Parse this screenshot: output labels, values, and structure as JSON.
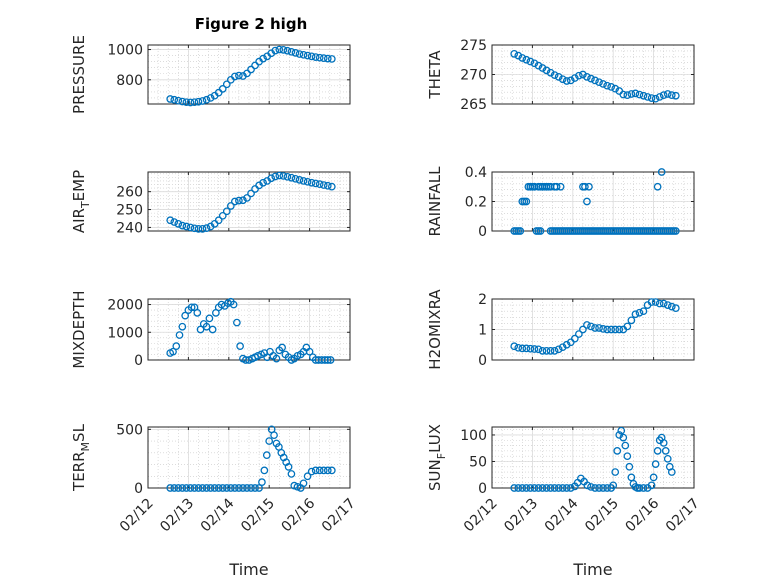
{
  "figure_title": "Figure 2 high",
  "colors": {
    "marker": "#0072BD",
    "axis": "#262626",
    "grid": "#c8c8c8",
    "background": "#ffffff"
  },
  "chart_data": [
    {
      "type": "scatter",
      "title": "Figure 2 high",
      "ylabel": "PRESSURE",
      "xlabel": "",
      "xlim": [
        "02/12",
        "02/17"
      ],
      "ylim": [
        640,
        1030
      ],
      "yticks": [
        800,
        1000
      ],
      "xticks": [
        "02/12",
        "02/13",
        "02/14",
        "02/15",
        "02/16",
        "02/17"
      ],
      "xticks_shown": false,
      "grid": true,
      "x_days": [
        0.55,
        0.65,
        0.75,
        0.85,
        0.95,
        1.05,
        1.15,
        1.25,
        1.35,
        1.45,
        1.55,
        1.65,
        1.75,
        1.85,
        1.95,
        2.05,
        2.15,
        2.25,
        2.35,
        2.45,
        2.55,
        2.65,
        2.75,
        2.85,
        2.95,
        3.05,
        3.15,
        3.25,
        3.35,
        3.45,
        3.55,
        3.65,
        3.75,
        3.85,
        3.95,
        4.05,
        4.15,
        4.25,
        4.35,
        4.45,
        4.55
      ],
      "y": [
        673,
        668,
        662,
        656,
        652,
        650,
        652,
        655,
        660,
        668,
        680,
        695,
        715,
        740,
        770,
        800,
        822,
        828,
        825,
        842,
        868,
        895,
        920,
        940,
        955,
        975,
        993,
        1000,
        998,
        992,
        985,
        978,
        970,
        965,
        960,
        955,
        950,
        946,
        943,
        940,
        938
      ]
    },
    {
      "type": "scatter",
      "ylabel": "THETA",
      "xlabel": "",
      "xlim": [
        "02/12",
        "02/17"
      ],
      "ylim": [
        265,
        275
      ],
      "yticks": [
        265,
        270,
        275
      ],
      "xticks": [
        "02/12",
        "02/13",
        "02/14",
        "02/15",
        "02/16",
        "02/17"
      ],
      "xticks_shown": false,
      "grid": true,
      "x_days": [
        0.55,
        0.65,
        0.75,
        0.85,
        0.95,
        1.05,
        1.15,
        1.25,
        1.35,
        1.45,
        1.55,
        1.65,
        1.75,
        1.85,
        1.95,
        2.05,
        2.15,
        2.25,
        2.35,
        2.45,
        2.55,
        2.65,
        2.75,
        2.85,
        2.95,
        3.05,
        3.15,
        3.25,
        3.35,
        3.45,
        3.55,
        3.65,
        3.75,
        3.85,
        3.95,
        4.05,
        4.15,
        4.25,
        4.35,
        4.45,
        4.55
      ],
      "y": [
        273.5,
        273.2,
        272.8,
        272.5,
        272.2,
        271.9,
        271.5,
        271.1,
        270.7,
        270.3,
        269.9,
        269.6,
        269.2,
        268.9,
        269.0,
        269.4,
        269.8,
        270.0,
        269.6,
        269.3,
        269.0,
        268.7,
        268.4,
        268.1,
        267.9,
        267.6,
        267.2,
        266.6,
        266.5,
        266.7,
        266.8,
        266.6,
        266.4,
        266.2,
        266.0,
        265.9,
        266.2,
        266.5,
        266.7,
        266.5,
        266.4
      ]
    },
    {
      "type": "scatter",
      "ylabel": "AIR_TEMP",
      "ylabel_display": {
        "main": "AIR",
        "sub": "T",
        "rest": "EMP"
      },
      "xlabel": "",
      "xlim": [
        "02/12",
        "02/17"
      ],
      "ylim": [
        238,
        271
      ],
      "yticks": [
        240,
        250,
        260
      ],
      "xticks": [
        "02/12",
        "02/13",
        "02/14",
        "02/15",
        "02/16",
        "02/17"
      ],
      "xticks_shown": false,
      "grid": true,
      "x_days": [
        0.55,
        0.65,
        0.75,
        0.85,
        0.95,
        1.05,
        1.15,
        1.25,
        1.35,
        1.45,
        1.55,
        1.65,
        1.75,
        1.85,
        1.95,
        2.05,
        2.15,
        2.25,
        2.35,
        2.45,
        2.55,
        2.65,
        2.75,
        2.85,
        2.95,
        3.05,
        3.15,
        3.25,
        3.35,
        3.45,
        3.55,
        3.65,
        3.75,
        3.85,
        3.95,
        4.05,
        4.15,
        4.25,
        4.35,
        4.45,
        4.55
      ],
      "y": [
        244,
        243,
        242,
        241,
        240.5,
        240,
        239.5,
        239.2,
        239.2,
        239.6,
        240.5,
        242,
        244,
        246.5,
        249,
        252,
        254.5,
        255,
        255.2,
        256.5,
        259,
        261.5,
        263.5,
        265,
        266,
        267.5,
        268.5,
        269,
        268.8,
        268.3,
        267.8,
        267.2,
        266.6,
        266,
        265.5,
        265,
        264.6,
        264.2,
        263.7,
        263.3,
        262.8
      ]
    },
    {
      "type": "scatter",
      "ylabel": "RAINFALL",
      "xlabel": "",
      "xlim": [
        "02/12",
        "02/17"
      ],
      "ylim": [
        0,
        0.4
      ],
      "yticks": [
        0,
        0.2,
        0.4
      ],
      "xticks": [
        "02/12",
        "02/13",
        "02/14",
        "02/15",
        "02/16",
        "02/17"
      ],
      "xticks_shown": false,
      "grid": true,
      "x_days": [
        0.55,
        0.6,
        0.65,
        0.7,
        0.75,
        0.8,
        0.85,
        0.9,
        0.95,
        1.0,
        1.05,
        1.1,
        1.15,
        1.2,
        1.25,
        1.3,
        1.35,
        1.4,
        1.45,
        1.5,
        1.55,
        1.6,
        1.65,
        1.7,
        1.75,
        1.8,
        1.85,
        1.9,
        1.95,
        2.0,
        2.05,
        2.1,
        2.15,
        2.2,
        2.25,
        2.3,
        2.35,
        2.4,
        2.45,
        2.5,
        2.55,
        2.6,
        2.65,
        2.7,
        2.75,
        2.8,
        2.85,
        2.9,
        2.95,
        3.0,
        3.05,
        3.1,
        3.15,
        3.2,
        3.25,
        3.3,
        3.35,
        3.4,
        3.45,
        3.5,
        3.55,
        3.6,
        3.65,
        3.7,
        3.75,
        3.8,
        3.85,
        3.9,
        3.95,
        4.0,
        4.05,
        4.1,
        4.15,
        4.2,
        4.25,
        4.3,
        4.35,
        4.4,
        4.45,
        4.5,
        4.55,
        0.95,
        1.0,
        1.05,
        1.15,
        1.2,
        1.25,
        1.35,
        1.45,
        1.55,
        1.6,
        1.7,
        2.25,
        2.3,
        2.4,
        2.35,
        4.1,
        4.2
      ],
      "y": [
        0,
        0,
        0,
        0,
        0.2,
        0.2,
        0.2,
        0.3,
        0.3,
        0.3,
        0.3,
        0,
        0,
        0,
        0.3,
        0.3,
        0.3,
        0.3,
        0,
        0,
        0,
        0,
        0,
        0,
        0,
        0,
        0,
        0,
        0,
        0,
        0,
        0,
        0,
        0,
        0,
        0,
        0,
        0,
        0,
        0,
        0,
        0,
        0,
        0,
        0,
        0,
        0,
        0,
        0,
        0,
        0,
        0,
        0,
        0,
        0,
        0,
        0,
        0,
        0,
        0,
        0,
        0,
        0,
        0,
        0,
        0,
        0,
        0,
        0,
        0,
        0,
        0,
        0,
        0,
        0,
        0,
        0,
        0,
        0,
        0,
        0,
        0.3,
        0.3,
        0.3,
        0.3,
        0.3,
        0.3,
        0.3,
        0.3,
        0.3,
        0.3,
        0.3,
        0.3,
        0.3,
        0.3,
        0.2,
        0.3,
        0.4
      ]
    },
    {
      "type": "scatter",
      "ylabel": "MIXDEPTH",
      "xlabel": "",
      "xlim": [
        "02/12",
        "02/17"
      ],
      "ylim": [
        0,
        2200
      ],
      "yticks": [
        0,
        1000,
        2000
      ],
      "xticks": [
        "02/12",
        "02/13",
        "02/14",
        "02/15",
        "02/16",
        "02/17"
      ],
      "xticks_shown": false,
      "grid": true,
      "x_days": [
        0.55,
        0.62,
        0.7,
        0.78,
        0.85,
        0.92,
        1.0,
        1.08,
        1.15,
        1.22,
        1.3,
        1.38,
        1.45,
        1.52,
        1.6,
        1.68,
        1.75,
        1.82,
        1.9,
        1.98,
        2.05,
        2.12,
        2.2,
        2.28,
        2.35,
        2.42,
        2.5,
        2.58,
        2.65,
        2.72,
        2.8,
        2.88,
        2.95,
        3.02,
        3.1,
        3.18,
        3.25,
        3.32,
        3.4,
        3.48,
        3.55,
        3.62,
        3.7,
        3.78,
        3.85,
        3.92,
        4.0,
        4.08,
        4.15,
        4.22,
        4.3,
        4.38,
        4.45,
        4.52
      ],
      "y": [
        250,
        300,
        500,
        900,
        1200,
        1600,
        1800,
        1900,
        1900,
        1700,
        1100,
        1300,
        1200,
        1500,
        1100,
        1700,
        1900,
        2000,
        1950,
        2050,
        2100,
        2000,
        1350,
        500,
        50,
        0,
        0,
        50,
        100,
        150,
        200,
        250,
        100,
        300,
        150,
        50,
        350,
        450,
        200,
        100,
        0,
        50,
        150,
        200,
        300,
        450,
        300,
        100,
        0,
        0,
        0,
        0,
        0,
        0
      ]
    },
    {
      "type": "scatter",
      "ylabel": "H2OMIXRA",
      "xlabel": "",
      "xlim": [
        "02/12",
        "02/17"
      ],
      "ylim": [
        0,
        2
      ],
      "yticks": [
        0,
        1,
        2
      ],
      "xticks": [
        "02/12",
        "02/13",
        "02/14",
        "02/15",
        "02/16",
        "02/17"
      ],
      "xticks_shown": false,
      "grid": true,
      "x_days": [
        0.55,
        0.65,
        0.75,
        0.85,
        0.95,
        1.05,
        1.15,
        1.25,
        1.35,
        1.45,
        1.55,
        1.65,
        1.75,
        1.85,
        1.95,
        2.05,
        2.15,
        2.25,
        2.35,
        2.45,
        2.55,
        2.65,
        2.75,
        2.85,
        2.95,
        3.05,
        3.15,
        3.25,
        3.35,
        3.45,
        3.55,
        3.65,
        3.75,
        3.85,
        3.95,
        4.05,
        4.15,
        4.25,
        4.35,
        4.45,
        4.55
      ],
      "y": [
        0.45,
        0.4,
        0.38,
        0.38,
        0.37,
        0.36,
        0.35,
        0.3,
        0.3,
        0.3,
        0.3,
        0.35,
        0.42,
        0.5,
        0.58,
        0.7,
        0.85,
        1.0,
        1.15,
        1.1,
        1.05,
        1.05,
        1.02,
        1.0,
        1.0,
        1.0,
        1.0,
        1.0,
        1.1,
        1.3,
        1.5,
        1.55,
        1.6,
        1.8,
        1.9,
        1.9,
        1.85,
        1.85,
        1.8,
        1.75,
        1.7
      ]
    },
    {
      "type": "scatter",
      "ylabel": "TERR_MSL",
      "ylabel_display": {
        "main": "TERR",
        "sub": "M",
        "rest": "SL"
      },
      "xlabel": "Time",
      "xlim": [
        "02/12",
        "02/17"
      ],
      "ylim": [
        0,
        520
      ],
      "yticks": [
        0,
        500
      ],
      "xticks": [
        "02/12",
        "02/13",
        "02/14",
        "02/15",
        "02/16",
        "02/17"
      ],
      "xticks_shown": true,
      "grid": true,
      "x_days": [
        0.55,
        0.65,
        0.75,
        0.85,
        0.95,
        1.05,
        1.15,
        1.25,
        1.35,
        1.45,
        1.55,
        1.65,
        1.75,
        1.85,
        1.95,
        2.05,
        2.15,
        2.25,
        2.35,
        2.45,
        2.55,
        2.65,
        2.75,
        2.82,
        2.88,
        2.94,
        3.0,
        3.06,
        3.12,
        3.18,
        3.24,
        3.3,
        3.36,
        3.42,
        3.48,
        3.55,
        3.62,
        3.7,
        3.78,
        3.85,
        3.95,
        4.05,
        4.15,
        4.25,
        4.35,
        4.45,
        4.55
      ],
      "y": [
        0,
        0,
        0,
        0,
        0,
        0,
        0,
        0,
        0,
        0,
        0,
        0,
        0,
        0,
        0,
        0,
        0,
        0,
        0,
        0,
        0,
        0,
        0,
        50,
        150,
        280,
        400,
        500,
        450,
        380,
        350,
        300,
        260,
        220,
        180,
        120,
        20,
        10,
        0,
        40,
        100,
        140,
        150,
        150,
        150,
        150,
        150
      ]
    },
    {
      "type": "scatter",
      "ylabel": "SUN_FLUX",
      "ylabel_display": {
        "main": "SUN",
        "sub": "F",
        "rest": "LUX"
      },
      "xlabel": "Time",
      "xlim": [
        "02/12",
        "02/17"
      ],
      "ylim": [
        0,
        115
      ],
      "yticks": [
        0,
        50,
        100
      ],
      "xticks": [
        "02/12",
        "02/13",
        "02/14",
        "02/15",
        "02/16",
        "02/17"
      ],
      "xticks_shown": true,
      "grid": true,
      "x_days": [
        0.55,
        0.65,
        0.75,
        0.85,
        0.95,
        1.05,
        1.15,
        1.25,
        1.35,
        1.45,
        1.55,
        1.65,
        1.75,
        1.85,
        1.95,
        2.05,
        2.12,
        2.2,
        2.28,
        2.36,
        2.45,
        2.55,
        2.65,
        2.75,
        2.85,
        2.95,
        3.0,
        3.05,
        3.1,
        3.15,
        3.2,
        3.25,
        3.3,
        3.35,
        3.4,
        3.45,
        3.5,
        3.55,
        3.6,
        3.65,
        3.75,
        3.85,
        3.95,
        4.0,
        4.05,
        4.1,
        4.15,
        4.2,
        4.25,
        4.3,
        4.35,
        4.4,
        4.45
      ],
      "y": [
        0,
        0,
        0,
        0,
        0,
        0,
        0,
        0,
        0,
        0,
        0,
        0,
        0,
        0,
        0,
        3,
        10,
        18,
        12,
        5,
        2,
        0,
        0,
        0,
        0,
        0,
        5,
        30,
        70,
        100,
        108,
        95,
        80,
        60,
        40,
        20,
        8,
        2,
        0,
        0,
        0,
        0,
        5,
        20,
        45,
        70,
        90,
        95,
        85,
        70,
        55,
        40,
        30
      ]
    }
  ]
}
